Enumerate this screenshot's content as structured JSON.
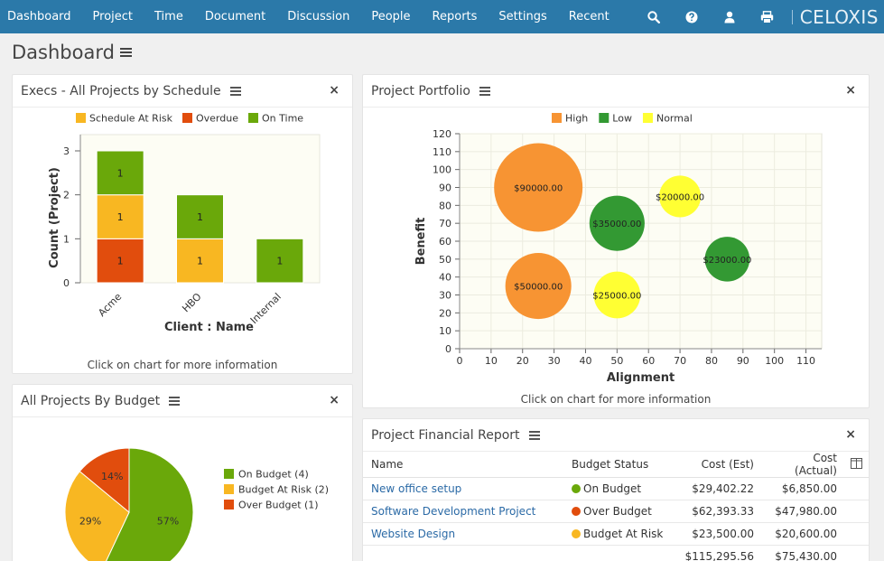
{
  "nav": {
    "items": [
      "Dashboard",
      "Project",
      "Time",
      "Document",
      "Discussion",
      "People",
      "Reports",
      "Settings",
      "Recent"
    ],
    "brand": "CELOXIS",
    "icons": [
      "search-icon",
      "help-icon",
      "user-icon",
      "print-icon"
    ]
  },
  "page": {
    "title": "Dashboard"
  },
  "panels": {
    "schedule": {
      "title": "Execs - All Projects by Schedule",
      "footer": "Click on chart for more information"
    },
    "portfolio": {
      "title": "Project Portfolio",
      "footer": "Click on chart for more information"
    },
    "budget": {
      "title": "All Projects By Budget"
    },
    "financial": {
      "title": "Project Financial Report"
    }
  },
  "colors": {
    "nav": "#2b79a9",
    "green": "#6aa80a",
    "amber": "#f8b722",
    "red": "#e14d0d",
    "orange": "#f79433",
    "dkgreen": "#339933",
    "yellow": "#ffff33"
  },
  "chart_data": [
    {
      "type": "bar",
      "stacked": true,
      "categories": [
        "Acme",
        "HBO",
        "Internal"
      ],
      "series": [
        {
          "name": "Overdue",
          "color": "#e14d0d",
          "values": [
            1,
            0,
            0
          ]
        },
        {
          "name": "Schedule At Risk",
          "color": "#f8b722",
          "values": [
            1,
            1,
            0
          ]
        },
        {
          "name": "On Time",
          "color": "#6aa80a",
          "values": [
            1,
            1,
            1
          ]
        }
      ],
      "legend": [
        {
          "name": "Schedule At Risk",
          "color": "#f8b722"
        },
        {
          "name": "Overdue",
          "color": "#e14d0d"
        },
        {
          "name": "On Time",
          "color": "#6aa80a"
        }
      ],
      "legend_position": "top",
      "xlabel": "Client : Name",
      "ylabel": "Count (Project)",
      "ylim": [
        0,
        3
      ],
      "yticks": [
        0,
        1,
        2,
        3
      ]
    },
    {
      "type": "scatter",
      "bubble": true,
      "legend": [
        {
          "name": "High",
          "color": "#f79433"
        },
        {
          "name": "Low",
          "color": "#339933"
        },
        {
          "name": "Normal",
          "color": "#ffff33"
        }
      ],
      "legend_position": "top",
      "points": [
        {
          "x": 25,
          "y": 90,
          "label": "$90000.00",
          "series": "High",
          "size": 90000
        },
        {
          "x": 25,
          "y": 35,
          "label": "$50000.00",
          "series": "High",
          "size": 50000
        },
        {
          "x": 50,
          "y": 70,
          "label": "$35000.00",
          "series": "Low",
          "size": 35000
        },
        {
          "x": 85,
          "y": 50,
          "label": "$23000.00",
          "series": "Low",
          "size": 23000
        },
        {
          "x": 70,
          "y": 85,
          "label": "$20000.00",
          "series": "Normal",
          "size": 20000
        },
        {
          "x": 50,
          "y": 30,
          "label": "$25000.00",
          "series": "Normal",
          "size": 25000
        }
      ],
      "xlabel": "Alignment",
      "ylabel": "Benefit",
      "xlim": [
        0,
        115
      ],
      "ylim": [
        0,
        120
      ],
      "xticks": [
        0,
        10,
        20,
        30,
        40,
        50,
        60,
        70,
        80,
        90,
        100,
        110
      ],
      "yticks": [
        0,
        10,
        20,
        30,
        40,
        50,
        60,
        70,
        80,
        90,
        100,
        110,
        120
      ]
    },
    {
      "type": "pie",
      "slices": [
        {
          "name": "On Budget (4)",
          "value": 57,
          "label": "57%",
          "color": "#6aa80a"
        },
        {
          "name": "Budget At Risk (2)",
          "value": 29,
          "label": "29%",
          "color": "#f8b722"
        },
        {
          "name": "Over Budget (1)",
          "value": 14,
          "label": "14%",
          "color": "#e14d0d"
        }
      ],
      "legend_position": "right"
    },
    {
      "type": "table",
      "columns": [
        "Name",
        "Budget Status",
        "Cost (Est)",
        "Cost (Actual)"
      ],
      "rows": [
        {
          "name": "New office setup",
          "status": "On Budget",
          "status_color": "#6aa80a",
          "est": "$29,402.22",
          "actual": "$6,850.00"
        },
        {
          "name": "Software Development Project",
          "status": "Over Budget",
          "status_color": "#e14d0d",
          "est": "$62,393.33",
          "actual": "$47,980.00"
        },
        {
          "name": "Website Design",
          "status": "Budget At Risk",
          "status_color": "#f8b722",
          "est": "$23,500.00",
          "actual": "$20,600.00"
        }
      ],
      "totals": {
        "est": "$115,295.56",
        "actual": "$75,430.00"
      }
    }
  ]
}
